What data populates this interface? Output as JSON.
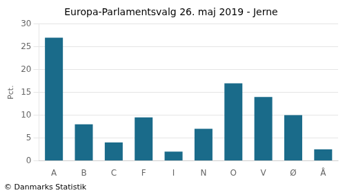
{
  "chart_data": {
    "type": "bar",
    "title": "Europa-Parlamentsvalg 26. maj 2019 - Jerne",
    "ylabel": "Pct.",
    "footer": "© Danmarks Statistik",
    "categories": [
      "A",
      "B",
      "C",
      "F",
      "I",
      "N",
      "O",
      "V",
      "Ø",
      "Å"
    ],
    "values": [
      27.0,
      8.0,
      4.0,
      9.5,
      2.0,
      7.0,
      17.0,
      14.0,
      10.0,
      2.5
    ],
    "color": "#1a6b8a",
    "ylim": [
      0,
      30
    ],
    "yticks": [
      0,
      5,
      10,
      15,
      20,
      25,
      30
    ],
    "grid": true
  }
}
